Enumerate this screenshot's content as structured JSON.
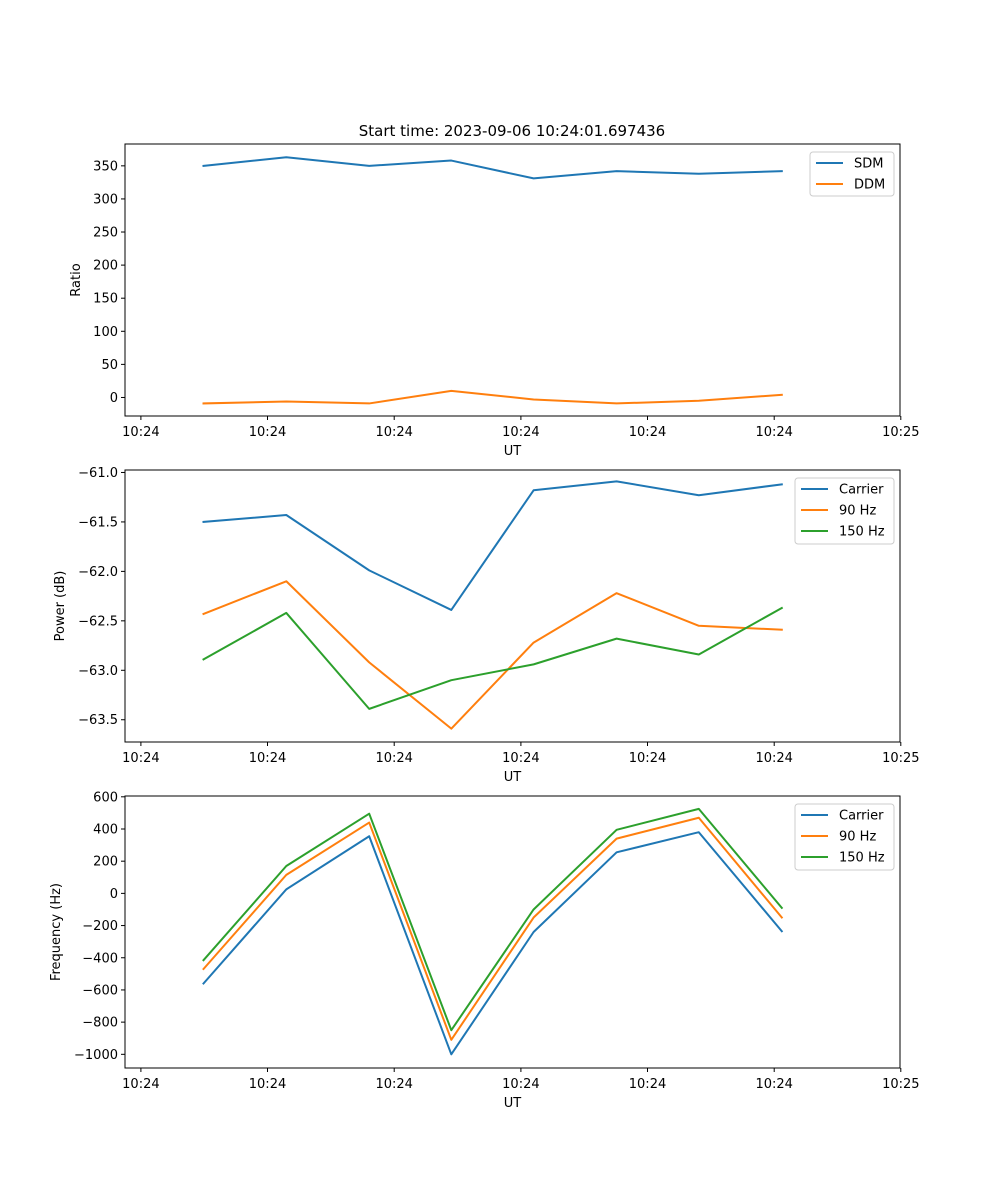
{
  "chart_data": [
    {
      "type": "line",
      "title": "Start time: 2023-09-06 10:24:01.697436",
      "xlabel": "UT",
      "ylabel": "Ratio",
      "x_tick_labels": [
        "10:24",
        "10:24",
        "10:24",
        "10:24",
        "10:24",
        "10:24",
        "10:24"
      ],
      "x_last_tick_label": "10:25",
      "ylim": [
        -28,
        383
      ],
      "y_ticks": [
        0,
        50,
        100,
        150,
        200,
        250,
        300,
        350
      ],
      "legend_position": "top-right",
      "series": [
        {
          "name": "SDM",
          "color": "#1f77b4",
          "values": [
            350,
            363,
            350,
            358,
            331,
            342,
            338,
            342
          ]
        },
        {
          "name": "DDM",
          "color": "#ff7f0e",
          "values": [
            -9,
            -6,
            -9,
            10,
            -3,
            -9,
            -5,
            4
          ]
        }
      ]
    },
    {
      "type": "line",
      "title": "",
      "xlabel": "UT",
      "ylabel": "Power (dB)",
      "x_tick_labels": [
        "10:24",
        "10:24",
        "10:24",
        "10:24",
        "10:24",
        "10:24",
        "10:24"
      ],
      "x_last_tick_label": "10:25",
      "ylim": [
        -63.725,
        -60.975
      ],
      "y_ticks": [
        -63.5,
        -63.0,
        -62.5,
        -62.0,
        -61.5,
        -61.0
      ],
      "y_tick_labels": [
        "−63.5",
        "−63.0",
        "−62.5",
        "−62.0",
        "−61.5",
        "−61.0"
      ],
      "legend_position": "top-right",
      "series": [
        {
          "name": "Carrier",
          "color": "#1f77b4",
          "values": [
            -61.5,
            -61.43,
            -61.99,
            -62.39,
            -61.18,
            -61.09,
            -61.23,
            -61.12
          ]
        },
        {
          "name": "90 Hz",
          "color": "#ff7f0e",
          "values": [
            -62.43,
            -62.1,
            -62.92,
            -63.59,
            -62.72,
            -62.22,
            -62.55,
            -62.59
          ]
        },
        {
          "name": "150 Hz",
          "color": "#2ca02c",
          "values": [
            -62.89,
            -62.42,
            -63.39,
            -63.1,
            -62.94,
            -62.68,
            -62.84,
            -62.37
          ]
        }
      ]
    },
    {
      "type": "line",
      "title": "",
      "xlabel": "UT",
      "ylabel": "Frequency (Hz)",
      "x_tick_labels": [
        "10:24",
        "10:24",
        "10:24",
        "10:24",
        "10:24",
        "10:24",
        "10:24"
      ],
      "x_last_tick_label": "10:25",
      "ylim": [
        -1085,
        605
      ],
      "y_ticks": [
        -1000,
        -800,
        -600,
        -400,
        -200,
        0,
        200,
        400,
        600
      ],
      "y_tick_labels": [
        "−1000",
        "−800",
        "−600",
        "−400",
        "−200",
        "0",
        "200",
        "400",
        "600"
      ],
      "legend_position": "top-right",
      "series": [
        {
          "name": "Carrier",
          "color": "#1f77b4",
          "values": [
            -560,
            25,
            355,
            -1000,
            -240,
            255,
            380,
            -235
          ]
        },
        {
          "name": "90 Hz",
          "color": "#ff7f0e",
          "values": [
            -470,
            115,
            440,
            -910,
            -150,
            340,
            470,
            -150
          ]
        },
        {
          "name": "150 Hz",
          "color": "#2ca02c",
          "values": [
            -415,
            170,
            495,
            -850,
            -100,
            395,
            525,
            -90
          ]
        }
      ]
    }
  ]
}
